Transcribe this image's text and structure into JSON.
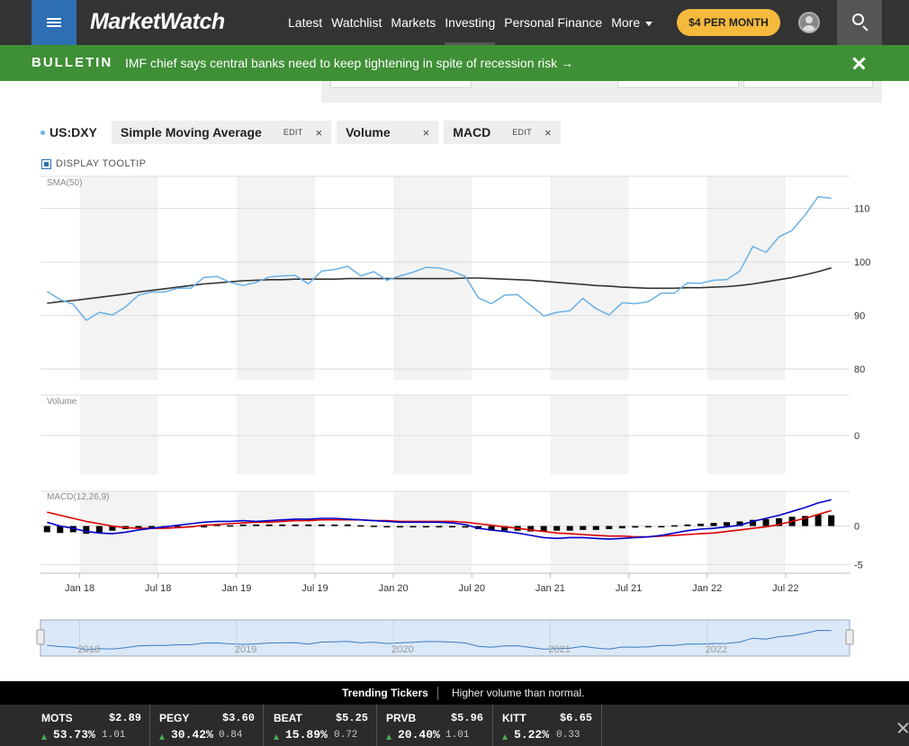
{
  "header": {
    "logo": "MarketWatch",
    "nav": [
      "Latest",
      "Watchlist",
      "Markets",
      "Investing",
      "Personal Finance",
      "More"
    ],
    "active_nav": "Investing",
    "subscribe_label": "$4 PER MONTH",
    "icons": [
      "menu-icon",
      "user-icon",
      "search-icon"
    ]
  },
  "bulletin": {
    "tag": "BULLETIN",
    "text": "IMF chief says central banks need to keep tightening in spite of recession risk →"
  },
  "toolbar": {
    "symbol": "US:DXY",
    "chips": [
      {
        "label": "Simple Moving Average",
        "edit": "EDIT",
        "close": "×"
      },
      {
        "label": "Volume",
        "edit": "",
        "close": "×"
      },
      {
        "label": "MACD",
        "edit": "EDIT",
        "close": "×"
      }
    ],
    "tooltip_label": "DISPLAY TOOLTIP"
  },
  "colors": {
    "price": "#6ab0e6",
    "sma": "#333333",
    "macd_line": "#0000cc",
    "signal_line": "#dd0000",
    "histogram": "#000000",
    "nav_bg": "#333333",
    "bulletin_bg": "#3f8f36",
    "accent": "#f5b93c"
  },
  "chart_data": {
    "type": "line",
    "x": [
      "2017-10",
      "2017-11",
      "2017-12",
      "2018-01",
      "2018-02",
      "2018-03",
      "2018-04",
      "2018-05",
      "2018-06",
      "2018-07",
      "2018-08",
      "2018-09",
      "2018-10",
      "2018-11",
      "2018-12",
      "2019-01",
      "2019-02",
      "2019-03",
      "2019-04",
      "2019-05",
      "2019-06",
      "2019-07",
      "2019-08",
      "2019-09",
      "2019-10",
      "2019-11",
      "2019-12",
      "2020-01",
      "2020-02",
      "2020-03",
      "2020-04",
      "2020-05",
      "2020-06",
      "2020-07",
      "2020-08",
      "2020-09",
      "2020-10",
      "2020-11",
      "2020-12",
      "2021-01",
      "2021-02",
      "2021-03",
      "2021-04",
      "2021-05",
      "2021-06",
      "2021-07",
      "2021-08",
      "2021-09",
      "2021-10",
      "2021-11",
      "2021-12",
      "2022-01",
      "2022-02",
      "2022-03",
      "2022-04",
      "2022-05",
      "2022-06",
      "2022-07",
      "2022-08",
      "2022-09",
      "2022-10"
    ],
    "panels": [
      {
        "label": "SMA(50)",
        "ylim": [
          78,
          116
        ],
        "y_ticks": [
          110,
          100,
          90,
          80
        ],
        "series": [
          {
            "name": "US:DXY",
            "values": [
              94.5,
              93,
              92.1,
              89.1,
              90.6,
              90.1,
              91.6,
              93.8,
              94.4,
              94.4,
              95.1,
              95.1,
              97.1,
              97.3,
              96.2,
              95.6,
              96.2,
              97.2,
              97.4,
              97.5,
              95.9,
              98.3,
              98.6,
              99.2,
              97.4,
              98.2,
              96.6,
              97.4,
              98.1,
              99,
              98.9,
              98.3,
              97.3,
              93.3,
              92.2,
              93.8,
              93.9,
              91.9,
              89.9,
              90.6,
              90.9,
              93.2,
              91.3,
              90.1,
              92.4,
              92.2,
              92.6,
              94.2,
              94.2,
              96.1,
              96,
              96.6,
              96.7,
              98.3,
              102.9,
              101.8,
              104.7,
              105.9,
              108.8,
              112.2,
              111.9
            ]
          },
          {
            "name": "SMA(50)",
            "values": [
              92.3,
              92.6,
              92.8,
              93.1,
              93.4,
              93.7,
              94,
              94.4,
              94.7,
              95,
              95.3,
              95.6,
              95.9,
              96.1,
              96.3,
              96.5,
              96.6,
              96.7,
              96.7,
              96.8,
              96.8,
              96.8,
              96.8,
              96.9,
              96.9,
              96.9,
              96.9,
              96.9,
              96.9,
              96.9,
              96.9,
              96.9,
              97,
              97,
              96.9,
              96.8,
              96.7,
              96.6,
              96.4,
              96.2,
              96,
              95.8,
              95.6,
              95.5,
              95.3,
              95.2,
              95.1,
              95.1,
              95.1,
              95.2,
              95.2,
              95.3,
              95.4,
              95.6,
              95.9,
              96.3,
              96.7,
              97.1,
              97.6,
              98.2,
              98.9
            ]
          }
        ]
      },
      {
        "label": "Volume",
        "y_ticks": [
          0
        ],
        "series": []
      },
      {
        "label": "MACD(12,26,9)",
        "ylim": [
          -6,
          4.5
        ],
        "y_ticks": [
          0,
          -5
        ],
        "series": [
          {
            "name": "MACD",
            "values": [
              0.5,
              0,
              -0.3,
              -0.7,
              -0.9,
              -1,
              -0.8,
              -0.5,
              -0.3,
              -0.1,
              0.1,
              0.3,
              0.5,
              0.6,
              0.6,
              0.7,
              0.6,
              0.7,
              0.8,
              0.9,
              0.9,
              1,
              1,
              0.9,
              0.8,
              0.7,
              0.6,
              0.5,
              0.5,
              0.5,
              0.5,
              0.4,
              0.2,
              -0.3,
              -0.5,
              -0.7,
              -0.9,
              -1.2,
              -1.5,
              -1.6,
              -1.5,
              -1.5,
              -1.6,
              -1.7,
              -1.6,
              -1.5,
              -1.4,
              -1.2,
              -0.9,
              -0.6,
              -0.4,
              -0.3,
              -0.1,
              0.1,
              0.6,
              1,
              1.4,
              1.9,
              2.4,
              3,
              3.4
            ]
          },
          {
            "name": "Signal",
            "values": [
              1.8,
              1.4,
              1,
              0.6,
              0.3,
              0,
              -0.2,
              -0.3,
              -0.3,
              -0.3,
              -0.2,
              -0.1,
              0.1,
              0.2,
              0.3,
              0.4,
              0.5,
              0.5,
              0.6,
              0.7,
              0.7,
              0.8,
              0.8,
              0.8,
              0.8,
              0.7,
              0.7,
              0.6,
              0.6,
              0.6,
              0.6,
              0.6,
              0.5,
              0.3,
              0.1,
              -0.1,
              -0.3,
              -0.5,
              -0.7,
              -0.9,
              -1,
              -1.1,
              -1.2,
              -1.3,
              -1.3,
              -1.4,
              -1.4,
              -1.3,
              -1.2,
              -1.1,
              -1,
              -0.9,
              -0.7,
              -0.5,
              -0.3,
              -0.1,
              0.2,
              0.6,
              1,
              1.5,
              2
            ]
          },
          {
            "name": "Histogram",
            "values": [
              -0.8,
              -0.9,
              -0.8,
              -1,
              -0.9,
              -0.6,
              -0.4,
              -0.3,
              -0.2,
              -0.2,
              -0.1,
              -0.1,
              -0.1,
              0.2,
              0.1,
              0.2,
              0.2,
              0.2,
              0.2,
              0.2,
              0.2,
              0.2,
              0.2,
              0.2,
              0.1,
              0.05,
              0,
              0,
              0,
              0,
              0,
              -0.1,
              -0.2,
              -0.4,
              -0.6,
              -0.6,
              -0.6,
              -0.7,
              -0.7,
              -0.6,
              -0.6,
              -0.5,
              -0.5,
              -0.4,
              -0.3,
              -0.2,
              -0.1,
              -0.1,
              0.1,
              0.2,
              0.3,
              0.4,
              0.5,
              0.6,
              0.8,
              0.9,
              1,
              1.2,
              1.3,
              1.5,
              1.4
            ]
          }
        ]
      }
    ],
    "x_ticks": [
      "Jan 18",
      "Jul 18",
      "Jan 19",
      "Jul 19",
      "Jan 20",
      "Jul 20",
      "Jan 21",
      "Jul 21",
      "Jan 22",
      "Jul 22"
    ],
    "navigator_labels": [
      "2018",
      "2019",
      "2020",
      "2021",
      "2022"
    ],
    "grid": true
  },
  "trending": {
    "title": "Trending Tickers",
    "subtitle": "Higher volume than normal.",
    "tickers": [
      {
        "symbol": "MOTS",
        "price": "$2.89",
        "change_pct": "53.73%",
        "change": "1.01"
      },
      {
        "symbol": "PEGY",
        "price": "$3.60",
        "change_pct": "30.42%",
        "change": "0.84"
      },
      {
        "symbol": "BEAT",
        "price": "$5.25",
        "change_pct": "15.89%",
        "change": "0.72"
      },
      {
        "symbol": "PRVB",
        "price": "$5.96",
        "change_pct": "20.40%",
        "change": "1.01"
      },
      {
        "symbol": "KITT",
        "price": "$6.65",
        "change_pct": "5.22%",
        "change": "0.33"
      }
    ]
  }
}
